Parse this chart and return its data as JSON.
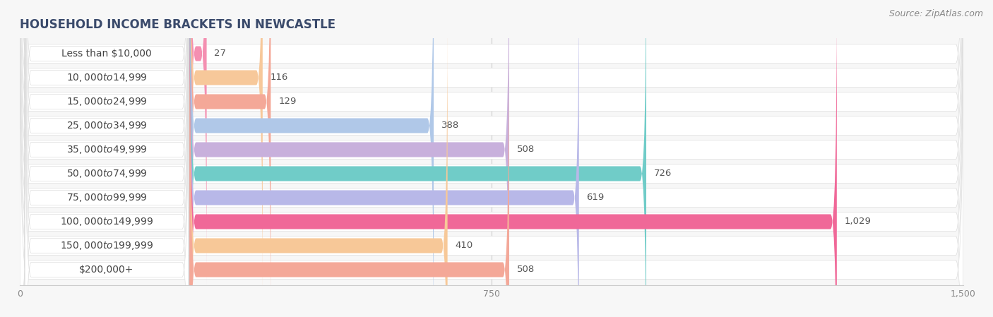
{
  "title": "HOUSEHOLD INCOME BRACKETS IN NEWCASTLE",
  "source": "Source: ZipAtlas.com",
  "categories": [
    "Less than $10,000",
    "$10,000 to $14,999",
    "$15,000 to $24,999",
    "$25,000 to $34,999",
    "$35,000 to $49,999",
    "$50,000 to $74,999",
    "$75,000 to $99,999",
    "$100,000 to $149,999",
    "$150,000 to $199,999",
    "$200,000+"
  ],
  "values": [
    27,
    116,
    129,
    388,
    508,
    726,
    619,
    1029,
    410,
    508
  ],
  "bar_colors": [
    "#f48fb1",
    "#f7c89a",
    "#f4a898",
    "#b0c8e8",
    "#c8b0dc",
    "#70ccc8",
    "#b8b8e8",
    "#f06898",
    "#f7c898",
    "#f4a898"
  ],
  "xlim_data": [
    0,
    1500
  ],
  "xticks": [
    0,
    750,
    1500
  ],
  "background_color": "#f7f7f7",
  "bar_row_bg": "#ffffff",
  "bar_bg_color": "#e8e8e8",
  "label_bg": "#ffffff",
  "title_fontsize": 12,
  "label_fontsize": 10,
  "value_fontsize": 9.5,
  "source_fontsize": 9,
  "title_color": "#3a4a6b",
  "label_color": "#444444",
  "value_color": "#555555"
}
